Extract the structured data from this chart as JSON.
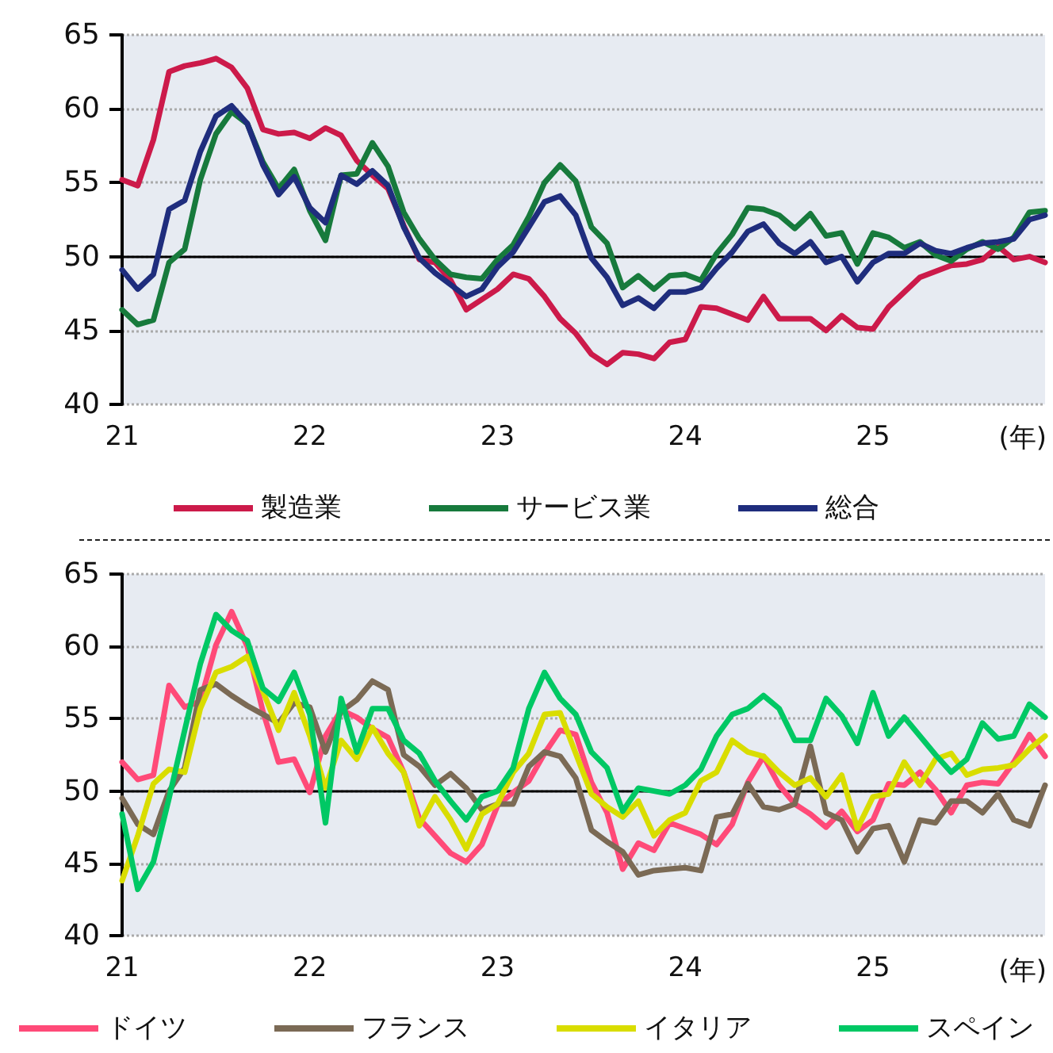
{
  "chart_data": [
    {
      "type": "line",
      "xlabel": "(年)",
      "categories": [
        "21",
        null,
        null,
        null,
        null,
        null,
        null,
        null,
        null,
        null,
        null,
        null,
        "22",
        null,
        null,
        null,
        null,
        null,
        null,
        null,
        null,
        null,
        null,
        null,
        "23",
        null,
        null,
        null,
        null,
        null,
        null,
        null,
        null,
        null,
        null,
        null,
        "24",
        null,
        null,
        null,
        null,
        null,
        null,
        null,
        null,
        null,
        null,
        null,
        "25",
        null,
        null,
        null,
        null,
        null,
        null,
        null,
        null,
        null,
        null,
        null
      ],
      "series": [
        {
          "name": "製造業",
          "color": "#cc1a4a",
          "values": [
            55.2,
            54.8,
            57.9,
            62.5,
            62.9,
            63.1,
            63.4,
            62.8,
            61.4,
            58.6,
            58.3,
            58.4,
            58.0,
            58.7,
            58.2,
            56.5,
            55.5,
            54.6,
            52.1,
            49.8,
            49.6,
            48.4,
            46.4,
            47.1,
            47.8,
            48.8,
            48.5,
            47.3,
            45.8,
            44.8,
            43.4,
            42.7,
            43.5,
            43.4,
            43.1,
            44.2,
            44.4,
            46.6,
            46.5,
            46.1,
            45.7,
            47.3,
            45.8,
            45.8,
            45.8,
            45.0,
            46.0,
            45.2,
            45.1,
            46.6,
            47.6,
            48.6,
            49.0,
            49.4,
            49.5,
            49.8,
            50.7,
            49.8,
            50.0,
            49.6
          ]
        },
        {
          "name": "サービス業",
          "color": "#177a3c",
          "values": [
            46.4,
            45.4,
            45.7,
            49.6,
            50.5,
            55.2,
            58.3,
            59.8,
            59.0,
            56.4,
            54.6,
            55.9,
            53.1,
            51.1,
            55.5,
            55.6,
            57.7,
            56.1,
            53.0,
            51.2,
            49.8,
            48.8,
            48.6,
            48.5,
            49.8,
            50.8,
            52.7,
            55.0,
            56.2,
            55.1,
            52.0,
            50.9,
            47.9,
            48.7,
            47.8,
            48.7,
            48.8,
            48.4,
            50.2,
            51.5,
            53.3,
            53.2,
            52.8,
            51.9,
            52.9,
            51.4,
            51.6,
            49.5,
            51.6,
            51.3,
            50.6,
            51.0,
            50.1,
            49.7,
            50.5,
            51.0,
            50.5,
            51.3,
            53.0,
            53.1
          ]
        },
        {
          "name": "総合",
          "color": "#1f2d7d",
          "values": [
            49.1,
            47.8,
            48.8,
            53.2,
            53.8,
            57.1,
            59.5,
            60.2,
            59.0,
            56.2,
            54.2,
            55.4,
            53.3,
            52.3,
            55.5,
            54.9,
            55.8,
            54.8,
            52.0,
            49.9,
            48.9,
            48.1,
            47.3,
            47.8,
            49.3,
            50.3,
            52.0,
            53.7,
            54.1,
            52.8,
            49.9,
            48.6,
            46.7,
            47.2,
            46.5,
            47.6,
            47.6,
            47.9,
            49.2,
            50.3,
            51.7,
            52.2,
            50.9,
            50.2,
            51.0,
            49.6,
            50.0,
            48.3,
            49.6,
            50.2,
            50.2,
            50.9,
            50.4,
            50.2,
            50.6,
            50.9,
            51.0,
            51.2,
            52.5,
            52.8
          ]
        }
      ],
      "ylim": [
        40,
        65
      ],
      "yticks": [
        40,
        45,
        50,
        55,
        60,
        65
      ],
      "grid": "y",
      "legend": "bottom",
      "marker": "none",
      "line_style": "solid",
      "ref_lines": [
        {
          "axis": "y",
          "value": 50,
          "color": "#000000"
        }
      ]
    },
    {
      "type": "line",
      "xlabel": "(年)",
      "categories": [
        "21",
        null,
        null,
        null,
        null,
        null,
        null,
        null,
        null,
        null,
        null,
        null,
        "22",
        null,
        null,
        null,
        null,
        null,
        null,
        null,
        null,
        null,
        null,
        null,
        "23",
        null,
        null,
        null,
        null,
        null,
        null,
        null,
        null,
        null,
        null,
        null,
        "24",
        null,
        null,
        null,
        null,
        null,
        null,
        null,
        null,
        null,
        null,
        null,
        "25",
        null,
        null,
        null,
        null,
        null,
        null,
        null,
        null,
        null,
        null,
        null
      ],
      "series": [
        {
          "name": "ドイツ",
          "color": "#ff4a78",
          "values": [
            52.0,
            50.8,
            51.1,
            57.3,
            55.8,
            56.2,
            60.1,
            62.4,
            60.0,
            55.5,
            52.0,
            52.2,
            49.9,
            53.8,
            55.6,
            55.1,
            54.3,
            53.7,
            51.3,
            48.1,
            46.9,
            45.7,
            45.1,
            46.3,
            49.0,
            49.9,
            50.7,
            52.6,
            54.2,
            53.9,
            50.6,
            48.5,
            44.6,
            46.4,
            45.9,
            47.8,
            47.4,
            47.0,
            46.3,
            47.7,
            50.6,
            52.4,
            50.4,
            49.1,
            48.4,
            47.5,
            48.6,
            47.2,
            48.0,
            50.5,
            50.4,
            51.3,
            50.1,
            48.5,
            50.4,
            50.6,
            50.5,
            52.0,
            53.9,
            52.4
          ]
        },
        {
          "name": "フランス",
          "color": "#7b6a55",
          "values": [
            49.5,
            47.7,
            47.0,
            50.0,
            51.6,
            57.0,
            57.4,
            56.6,
            55.9,
            55.3,
            54.7,
            56.1,
            55.8,
            52.7,
            55.5,
            56.3,
            57.6,
            57.0,
            52.5,
            51.7,
            50.4,
            51.2,
            50.2,
            48.7,
            49.1,
            49.1,
            51.7,
            52.7,
            52.4,
            50.9,
            47.3,
            46.5,
            45.8,
            44.2,
            44.5,
            44.6,
            44.7,
            44.5,
            48.2,
            48.4,
            50.5,
            48.9,
            48.7,
            49.1,
            53.1,
            48.5,
            48.0,
            45.8,
            47.4,
            47.6,
            45.1,
            48.0,
            47.8,
            49.3,
            49.3,
            48.5,
            49.8,
            48.0,
            47.6,
            50.4
          ]
        },
        {
          "name": "イタリア",
          "color": "#d9dd00",
          "values": [
            43.8,
            46.9,
            50.5,
            51.5,
            51.3,
            55.7,
            58.2,
            58.6,
            59.3,
            56.9,
            54.2,
            56.8,
            53.8,
            50.2,
            53.5,
            52.2,
            54.4,
            52.6,
            51.3,
            47.6,
            49.6,
            48.0,
            46.0,
            48.4,
            49.1,
            51.3,
            52.6,
            55.3,
            55.4,
            52.6,
            49.8,
            48.9,
            48.2,
            49.3,
            46.9,
            48.0,
            48.5,
            50.7,
            51.3,
            53.5,
            52.7,
            52.4,
            51.3,
            50.4,
            50.9,
            49.6,
            51.1,
            47.4,
            49.6,
            49.8,
            52.0,
            50.4,
            52.2,
            52.6,
            51.1,
            51.5,
            51.6,
            51.8,
            52.9,
            53.8
          ]
        },
        {
          "name": "スペイン",
          "color": "#00c864",
          "values": [
            48.4,
            43.2,
            45.1,
            49.5,
            54.2,
            58.8,
            62.2,
            61.1,
            60.4,
            57.1,
            56.2,
            58.2,
            55.3,
            47.8,
            56.4,
            52.7,
            55.7,
            55.7,
            53.5,
            52.6,
            50.7,
            49.3,
            48.0,
            49.6,
            50.0,
            51.6,
            55.7,
            58.2,
            56.4,
            55.3,
            52.7,
            51.6,
            48.6,
            50.2,
            50.0,
            49.8,
            50.4,
            51.5,
            53.8,
            55.3,
            55.7,
            56.6,
            55.7,
            53.5,
            53.5,
            56.4,
            55.2,
            53.3,
            56.8,
            53.8,
            55.1,
            53.8,
            52.5,
            51.3,
            52.2,
            54.7,
            53.6,
            53.8,
            56.0,
            55.1
          ]
        }
      ],
      "ylim": [
        40,
        65
      ],
      "yticks": [
        40,
        45,
        50,
        55,
        60,
        65
      ],
      "grid": "y",
      "legend": "bottom",
      "marker": "none",
      "line_style": "solid",
      "ref_lines": [
        {
          "axis": "y",
          "value": 50,
          "color": "#000000"
        }
      ]
    }
  ]
}
